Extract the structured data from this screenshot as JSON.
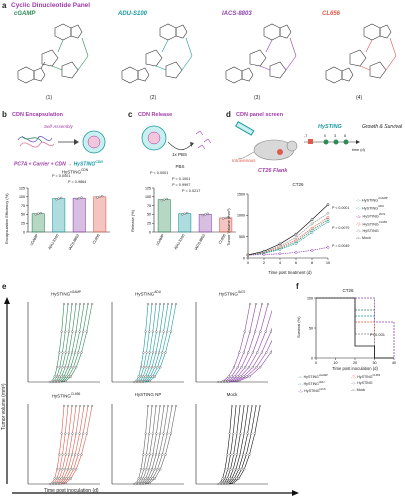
{
  "panel_a": {
    "label": "a",
    "title": "Cyclic Dinucleotide Panel",
    "molecules": [
      {
        "name": "cGAMP",
        "number": "(1)",
        "color": "#2e8b57"
      },
      {
        "name": "ADU-S100",
        "number": "(2)",
        "color": "#1a9aa0"
      },
      {
        "name": "IACS-8803",
        "number": "(3)",
        "color": "#8e44ad"
      },
      {
        "name": "CL656",
        "number": "(4)",
        "color": "#e05a4a"
      }
    ]
  },
  "panel_b": {
    "label": "b",
    "title": "CDN Encapsulation",
    "self_assembly": "Self-Assembly",
    "equation_left": "PC7A + Carrier + CDN",
    "equation_right": "HySTING",
    "equation_right_sup": "CDN",
    "chart_title": "HySTING",
    "chart_title_sup": "CDN",
    "ylabel": "Encapsulation Efficiency (%)",
    "pvals": [
      "P = 0.0001",
      "P = 0.9864"
    ]
  },
  "panel_c": {
    "label": "c",
    "title": "CDN Release",
    "pbs_note": "1x PBS",
    "chart_title": "PBS",
    "ylabel": "Release (%)",
    "pvals": [
      "P < 0.0001",
      "P = 0.1001",
      "P = 0.9997",
      "P = 0.0217"
    ]
  },
  "panel_d": {
    "label": "d",
    "title": "CDN panel screen",
    "route": "Intravenous",
    "model": "CT26 Flank",
    "drug": "HySTING",
    "timeline_ticks": [
      "-7",
      "0",
      "3",
      "6"
    ],
    "time_label": "time (d)",
    "outcome": "Growth & Survival",
    "chart_title": "CT26",
    "xlabel": "Time post treatment (d)",
    "ylabel": "Tumor Volume (mm³)",
    "pvals": [
      "P < 0.0001",
      "P = 0.0079",
      "P = 0.0049"
    ],
    "legend": [
      {
        "name": "HySTING",
        "sup": "cGAMP",
        "color": "#2e8b57"
      },
      {
        "name": "HySTING",
        "sup": "ADU",
        "color": "#1a9aa0"
      },
      {
        "name": "HySTING",
        "sup": "IACS",
        "color": "#8e44ad"
      },
      {
        "name": "HySTING",
        "sup": "CL656",
        "color": "#e05a4a"
      },
      {
        "name": "HySTING",
        "sup": "",
        "color": "#888888"
      },
      {
        "name": "Mock",
        "sup": "",
        "color": "#111111"
      }
    ]
  },
  "panel_e": {
    "label": "e",
    "ylabel": "Tumor volume (mm³)",
    "xlabel": "Time post inoculation (d)",
    "subplots": [
      {
        "name": "HySTING",
        "sup": "cGAMP",
        "color": "#2e8b57"
      },
      {
        "name": "HySTING",
        "sup": "ADU",
        "color": "#1a9aa0"
      },
      {
        "name": "HySTING",
        "sup": "IACS",
        "color": "#8e44ad"
      },
      {
        "name": "HySTING",
        "sup": "CL656",
        "color": "#e05a4a"
      },
      {
        "name": "HySTING NP",
        "sup": "",
        "color": "#666666"
      },
      {
        "name": "Mock",
        "sup": "",
        "color": "#111111"
      }
    ]
  },
  "panel_f": {
    "label": "f",
    "chart_title": "CT26",
    "xlabel": "Time post inoculation (d)",
    "ylabel": "Survival (%)",
    "pval": "P<0.001",
    "legend": [
      {
        "name": "HySTING",
        "sup": "cGAMP",
        "color": "#2e8b57"
      },
      {
        "name": "HySTING",
        "sup": "CL656",
        "color": "#e05a4a"
      },
      {
        "name": "HySTING",
        "sup": "ADU",
        "color": "#1a9aa0"
      },
      {
        "name": "HySTING",
        "sup": "",
        "color": "#888888"
      },
      {
        "name": "HySTING",
        "sup": "IACS",
        "color": "#8e44ad"
      },
      {
        "name": "Mock",
        "sup": "",
        "color": "#111111"
      }
    ]
  },
  "chart_data": [
    {
      "type": "bar",
      "title": "HySTING CDN",
      "categories": [
        "cGAMP",
        "ADU-S100",
        "IACS-8803",
        "CL656"
      ],
      "values": [
        52,
        95,
        96,
        100
      ],
      "colors": [
        "#2e8b57",
        "#1a9aa0",
        "#8e44ad",
        "#e05a4a"
      ],
      "ylim": [
        0,
        125
      ],
      "yticks": [
        0,
        25,
        50,
        75,
        100,
        125
      ],
      "ylabel": "Encapsulation Efficiency (%)"
    },
    {
      "type": "bar",
      "title": "PBS",
      "categories": [
        "cGAMP",
        "ADU-S100",
        "IACS-8803",
        "CL656"
      ],
      "values": [
        92,
        52,
        50,
        40
      ],
      "colors": [
        "#2e8b57",
        "#1a9aa0",
        "#8e44ad",
        "#e05a4a"
      ],
      "ylim": [
        0,
        125
      ],
      "yticks": [
        0,
        25,
        50,
        75,
        100,
        125
      ],
      "ylabel": "Release (%)"
    },
    {
      "type": "line",
      "title": "CT26",
      "x": [
        0,
        2,
        4,
        6,
        8,
        10
      ],
      "xticks": [
        0,
        2,
        4,
        6,
        8,
        10
      ],
      "ylim": [
        0,
        1500
      ],
      "yticks": [
        0,
        500,
        1000,
        1500
      ],
      "xlabel": "Time post treatment (d)",
      "ylabel": "Tumor Volume (mm³)",
      "series": [
        {
          "name": "HySTING cGAMP",
          "color": "#2e8b57",
          "values": [
            70,
            120,
            220,
            380,
            650,
            900
          ]
        },
        {
          "name": "HySTING ADU",
          "color": "#1a9aa0",
          "values": [
            70,
            110,
            200,
            340,
            600,
            850
          ]
        },
        {
          "name": "HySTING IACS",
          "color": "#8e44ad",
          "values": [
            70,
            80,
            100,
            130,
            180,
            250
          ]
        },
        {
          "name": "HySTING CL656",
          "color": "#e05a4a",
          "values": [
            70,
            130,
            250,
            420,
            700,
            950
          ]
        },
        {
          "name": "HySTING",
          "color": "#888888",
          "values": [
            70,
            140,
            280,
            480,
            800,
            1050
          ]
        },
        {
          "name": "Mock",
          "color": "#111111",
          "values": [
            70,
            160,
            330,
            560,
            900,
            1250
          ]
        }
      ]
    },
    {
      "type": "line",
      "title": "CT26",
      "x": [
        0,
        10,
        20,
        30,
        40
      ],
      "xticks": [
        0,
        10,
        20,
        30,
        40
      ],
      "ylim": [
        0,
        100
      ],
      "yticks": [
        0,
        50,
        100
      ],
      "xlabel": "Time post inoculation (d)",
      "ylabel": "Survival (%)",
      "series": [
        {
          "name": "HySTING cGAMP",
          "color": "#2e8b57",
          "values": [
            100,
            100,
            80,
            0,
            0
          ]
        },
        {
          "name": "HySTING ADU",
          "color": "#1a9aa0",
          "values": [
            100,
            100,
            70,
            0,
            0
          ]
        },
        {
          "name": "HySTING IACS",
          "color": "#8e44ad",
          "values": [
            100,
            100,
            100,
            60,
            0
          ]
        },
        {
          "name": "HySTING CL656",
          "color": "#e05a4a",
          "values": [
            100,
            100,
            60,
            0,
            0
          ]
        },
        {
          "name": "HySTING",
          "color": "#888888",
          "values": [
            100,
            100,
            40,
            0,
            0
          ]
        },
        {
          "name": "Mock",
          "color": "#111111",
          "values": [
            100,
            100,
            20,
            0,
            0
          ]
        }
      ]
    }
  ]
}
